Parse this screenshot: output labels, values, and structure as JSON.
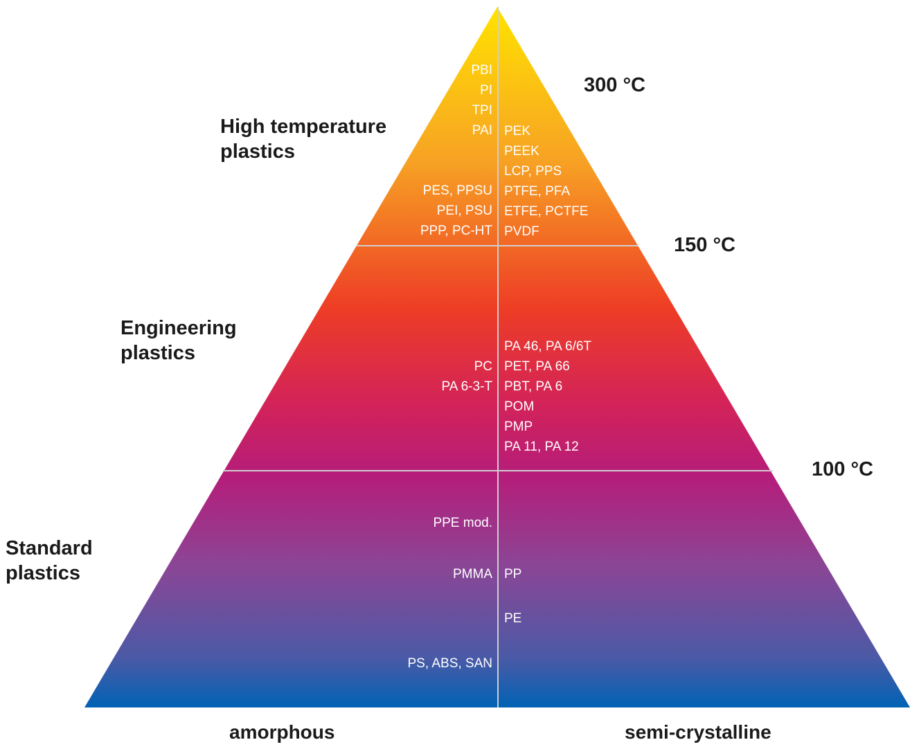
{
  "colors": {
    "gradient": [
      "#ffe300",
      "#f7a224",
      "#ee3d25",
      "#d2225a",
      "#b51d7a",
      "#8a4696",
      "#4a5aa6",
      "#0062b4"
    ],
    "dividers": "#cfcfcf",
    "text_on_pyramid": "#ffffff",
    "heading_text": "#1a1a1a"
  },
  "tiers": {
    "high": "High temperature\nplastics",
    "engineering": "Engineering\nplastics",
    "standard": "Standard\nplastics"
  },
  "temperatures": {
    "t300": "300 °C",
    "t150": "150 °C",
    "t100": "100 °C"
  },
  "axes": {
    "amorphous": "amorphous",
    "semi_crystalline": "semi-crystalline"
  },
  "materials": {
    "amorphous_high": [
      "PBI",
      "PI",
      "TPI",
      "PAI",
      "",
      "",
      "PES, PPSU",
      "PEI, PSU",
      "PPP, PC-HT"
    ],
    "semi_high": [
      "PEK",
      "PEEK",
      "LCP, PPS",
      "PTFE, PFA",
      "ETFE, PCTFE",
      "PVDF"
    ],
    "amorphous_eng": [
      "PC",
      "PA 6-3-T"
    ],
    "semi_eng": [
      "PA 46, PA 6/6T",
      "PET, PA 66",
      "PBT, PA 6",
      "POM",
      "PMP",
      "PA 11, PA 12"
    ],
    "amorphous_std_1": "PPE mod.",
    "amorphous_std_2": "PMMA",
    "amorphous_std_3": "PS, ABS, SAN",
    "semi_std_1": "PP",
    "semi_std_2": "PE"
  }
}
